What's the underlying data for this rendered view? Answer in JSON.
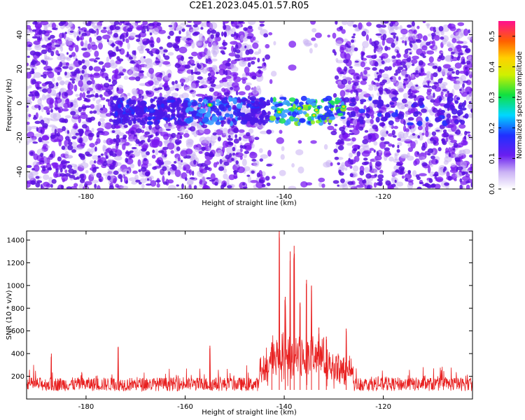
{
  "title": "C2E1.2023.045.01.57.R05",
  "colors": {
    "scatter_low": "#7a18f0",
    "scatter_mid": "#3aa0ff",
    "scatter_high": "#1ee05a",
    "peak": "#ffd400",
    "snr_line": "#e82020"
  },
  "chart_data": [
    {
      "type": "heatmap",
      "xlabel": "Height of straight line (km)",
      "ylabel": "Frequency (Hz)",
      "xlim": [
        -192,
        -102
      ],
      "ylim": [
        -50,
        48
      ],
      "xticks": [
        -180,
        -160,
        -140,
        -120
      ],
      "yticks": [
        -40,
        -20,
        0,
        20,
        40
      ],
      "colorbar": {
        "label": "Normalized spectral amplitude",
        "range": [
          0.0,
          0.55
        ],
        "ticks": [
          "0.0",
          "0.1",
          "0.2",
          "0.3",
          "0.4",
          "0.5"
        ]
      },
      "features": {
        "gap_km": [
          -144,
          -129
        ],
        "gap_sparse_band_hz": [
          -5,
          12
        ],
        "signal_band_hz": [
          -12,
          3
        ],
        "bright_core_km": [
          -143,
          -128
        ],
        "secondary_patches_km": [
          -160,
          -148
        ]
      },
      "grid": false,
      "legend": "none"
    },
    {
      "type": "line",
      "xlabel": "Height of straight line (km)",
      "ylabel": "SNR (10 * v/v)",
      "xlim": [
        -192,
        -102
      ],
      "ylim": [
        0,
        1480
      ],
      "xticks": [
        -180,
        -160,
        -140,
        -120
      ],
      "yticks": [
        200,
        400,
        600,
        800,
        1000,
        1200,
        1400
      ],
      "series": [
        {
          "baseline": 140,
          "noise_amplitude": 120,
          "peaks": [
            {
              "x": -141.0,
              "y": 1480
            },
            {
              "x": -138.0,
              "y": 1350
            },
            {
              "x": -138.8,
              "y": 1300
            },
            {
              "x": -135.5,
              "y": 1050
            },
            {
              "x": -134.5,
              "y": 1000
            },
            {
              "x": -139.8,
              "y": 900
            },
            {
              "x": -136.8,
              "y": 850
            },
            {
              "x": -133.0,
              "y": 630
            },
            {
              "x": -127.5,
              "y": 620
            },
            {
              "x": -131.5,
              "y": 550
            },
            {
              "x": -142.5,
              "y": 500
            },
            {
              "x": -173.5,
              "y": 460
            },
            {
              "x": -155.0,
              "y": 470
            },
            {
              "x": -187.0,
              "y": 400
            }
          ]
        }
      ],
      "grid": false,
      "legend": "none"
    }
  ]
}
